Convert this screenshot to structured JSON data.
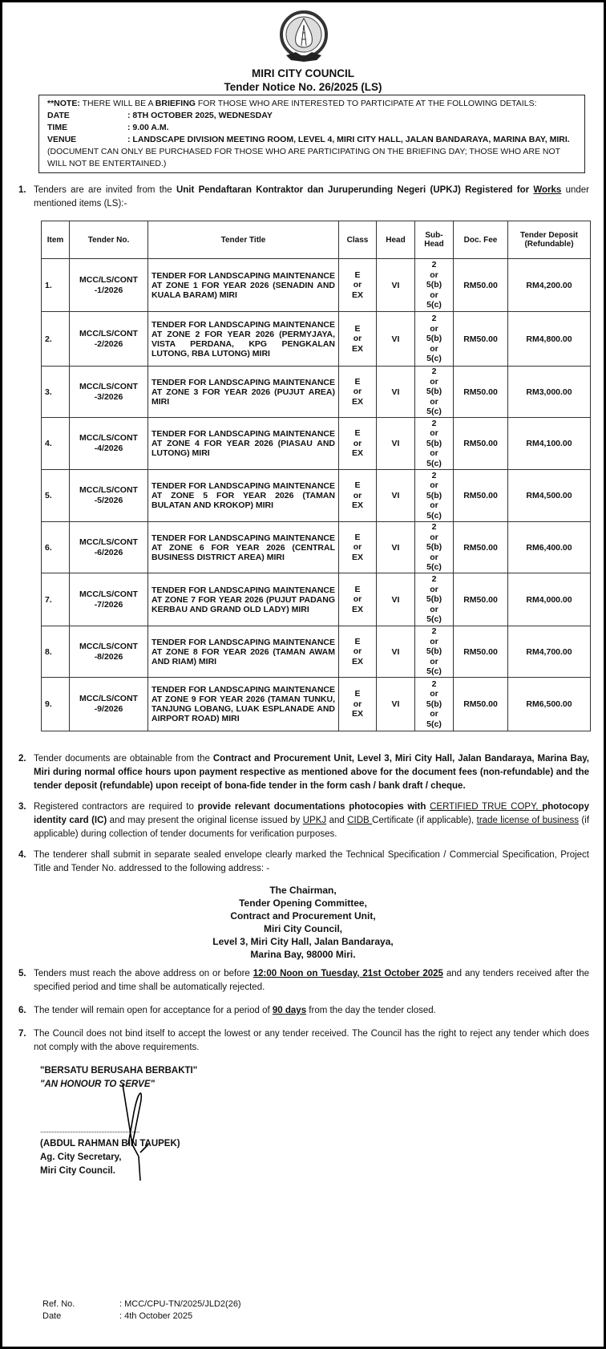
{
  "header": {
    "logo_text": "MAJLIS BANDARAYA MIRI",
    "org": "MIRI CITY COUNCIL",
    "notice": "Tender Notice No. 26/2025 (LS)"
  },
  "note": {
    "prefix": "**NOTE:",
    "line1a": " THERE WILL BE A ",
    "briefing": "BRIEFING",
    "line1b": " FOR THOSE WHO ARE INTERESTED TO PARTICIPATE AT THE FOLLOWING DETAILS:",
    "date_label": "DATE",
    "date_value": ": 8TH OCTOBER 2025, WEDNESDAY",
    "time_label": "TIME",
    "time_value": ": 9.00 A.M.",
    "venue_label": "VENUE",
    "venue_value": ": LANDSCAPE DIVISION MEETING ROOM, LEVEL 4, MIRI CITY HALL, JALAN BANDARAYA, MARINA BAY, MIRI.",
    "disclaimer": "(DOCUMENT CAN ONLY BE PURCHASED FOR THOSE WHO ARE PARTICIPATING ON THE BRIEFING DAY; THOSE WHO ARE NOT WILL NOT BE ENTERTAINED.)"
  },
  "paragraphs": [
    {
      "num": "1.",
      "segs": [
        {
          "t": "Tenders are are invited from the "
        },
        {
          "t": "Unit Pendaftaran Kontraktor dan Juruperunding Negeri (UPKJ) Registered for ",
          "b": 1
        },
        {
          "t": "Works",
          "b": 1,
          "u": 1
        },
        {
          "t": " under mentioned items (LS):-"
        }
      ]
    },
    {
      "num": "2.",
      "segs": [
        {
          "t": "Tender documents are obtainable from the "
        },
        {
          "t": "Contract and Procurement Unit, Level 3, Miri City Hall, Jalan Bandaraya, Marina Bay, Miri during normal office hours upon payment respective as mentioned above for the document fees (non-refundable) and the tender deposit (refundable) upon receipt of bona-fide tender in the form cash / bank draft / cheque.",
          "b": 1
        }
      ]
    },
    {
      "num": "3.",
      "segs": [
        {
          "t": "Registered contractors are required to "
        },
        {
          "t": "provide relevant documentations photocopies with ",
          "b": 1
        },
        {
          "t": "CERTIFIED TRUE COPY, ",
          "u": 1
        },
        {
          "t": "photocopy identity card (IC)",
          "b": 1
        },
        {
          "t": " and may present the original license issued by "
        },
        {
          "t": "UPKJ",
          "u": 1
        },
        {
          "t": " and "
        },
        {
          "t": "CIDB ",
          "u": 1
        },
        {
          "t": "Certificate (if applicable), "
        },
        {
          "t": "trade license of business",
          "u": 1
        },
        {
          "t": " (if applicable) during collection of tender documents for verification purposes."
        }
      ]
    },
    {
      "num": "4.",
      "segs": [
        {
          "t": "The tenderer shall submit in separate sealed envelope clearly marked the Technical Specification / Commercial Specification, Project Title and Tender No. addressed to the following address: -"
        }
      ]
    },
    {
      "num": "5.",
      "segs": [
        {
          "t": "Tenders must reach the above address on or before "
        },
        {
          "t": "12:00 Noon on Tuesday, 21st October 2025",
          "b": 1,
          "u": 1
        },
        {
          "t": " and any tenders received after the specified period and time shall be automatically rejected."
        }
      ]
    },
    {
      "num": "6.",
      "segs": [
        {
          "t": "The tender will remain open for acceptance for a period of "
        },
        {
          "t": "90 days",
          "b": 1,
          "u": 1
        },
        {
          "t": " from the day the tender closed."
        }
      ]
    },
    {
      "num": "7.",
      "segs": [
        {
          "t": "The Council does not bind itself to accept the lowest or any tender received. The Council has the right to reject any tender which does not comply with the above requirements."
        }
      ]
    }
  ],
  "table": {
    "headers": [
      "Item",
      "Tender No.",
      "Tender Title",
      "Class",
      "Head",
      "Sub-Head",
      "Doc. Fee",
      "Tender Deposit (Refundable)"
    ],
    "rows": [
      [
        "1.",
        "MCC/LS/CONT -1/2026",
        "TENDER FOR LANDSCAPING MAINTENANCE AT ZONE 1 FOR YEAR 2026 (SENADIN AND KUALA BARAM) MIRI",
        "E or EX",
        "VI",
        "2 or 5(b) or 5(c)",
        "RM50.00",
        "RM4,200.00"
      ],
      [
        "2.",
        "MCC/LS/CONT -2/2026",
        "TENDER FOR LANDSCAPING MAINTENANCE AT ZONE 2 FOR YEAR 2026 (PERMYJAYA, VISTA PERDANA, KPG PENGKALAN LUTONG, RBA LUTONG) MIRI",
        "E or EX",
        "VI",
        "2 or 5(b) or 5(c)",
        "RM50.00",
        "RM4,800.00"
      ],
      [
        "3.",
        "MCC/LS/CONT -3/2026",
        "TENDER FOR LANDSCAPING MAINTENANCE AT ZONE 3 FOR YEAR 2026 (PUJUT AREA) MIRI",
        "E or EX",
        "VI",
        "2 or 5(b) or 5(c)",
        "RM50.00",
        "RM3,000.00"
      ],
      [
        "4.",
        "MCC/LS/CONT -4/2026",
        "TENDER FOR LANDSCAPING MAINTENANCE AT ZONE 4 FOR YEAR 2026 (PIASAU AND LUTONG) MIRI",
        "E or EX",
        "VI",
        "2 or 5(b) or 5(c)",
        "RM50.00",
        "RM4,100.00"
      ],
      [
        "5.",
        "MCC/LS/CONT -5/2026",
        "TENDER FOR LANDSCAPING MAINTENANCE AT ZONE 5 FOR YEAR 2026 (TAMAN BULATAN AND KROKOP) MIRI",
        "E or EX",
        "VI",
        "2 or 5(b) or 5(c)",
        "RM50.00",
        "RM4,500.00"
      ],
      [
        "6.",
        "MCC/LS/CONT -6/2026",
        "TENDER FOR LANDSCAPING MAINTENANCE AT ZONE 6 FOR YEAR 2026 (CENTRAL BUSINESS DISTRICT AREA) MIRI",
        "E or EX",
        "VI",
        "2 or 5(b) or 5(c)",
        "RM50.00",
        "RM6,400.00"
      ],
      [
        "7.",
        "MCC/LS/CONT -7/2026",
        "TENDER FOR LANDSCAPING MAINTENANCE AT ZONE 7 FOR YEAR 2026 (PUJUT PADANG KERBAU AND GRAND OLD LADY) MIRI",
        "E or EX",
        "VI",
        "2 or 5(b) or 5(c)",
        "RM50.00",
        "RM4,000.00"
      ],
      [
        "8.",
        "MCC/LS/CONT -8/2026",
        "TENDER FOR LANDSCAPING MAINTENANCE AT ZONE 8 FOR YEAR 2026 (TAMAN AWAM AND RIAM) MIRI",
        "E or EX",
        "VI",
        "2 or 5(b) or 5(c)",
        "RM50.00",
        "RM4,700.00"
      ],
      [
        "9.",
        "MCC/LS/CONT -9/2026",
        "TENDER FOR LANDSCAPING MAINTENANCE AT ZONE 9 FOR YEAR 2026 (TAMAN TUNKU, TANJUNG LOBANG, LUAK ESPLANADE AND AIRPORT ROAD) MIRI",
        "E or EX",
        "VI",
        "2 or 5(b) or 5(c)",
        "RM50.00",
        "RM6,500.00"
      ]
    ]
  },
  "address": [
    "The Chairman,",
    "Tender Opening Committee,",
    "Contract and Procurement Unit,",
    "Miri City Council,",
    "Level 3, Miri City Hall, Jalan Bandaraya,",
    "Marina Bay, 98000 Miri."
  ],
  "signature": {
    "motto_malay": "\"BERSATU BERUSAHA BERBAKTI\"",
    "motto_english": "\"AN HONOUR TO SERVE\"",
    "dots": "..............................................................",
    "name": "(ABDUL RAHMAN BIN TAUPEK)",
    "position": "Ag. City Secretary,",
    "org": "Miri City Council."
  },
  "reference": {
    "ref_label": "Ref. No.",
    "ref_value": ": MCC/CPU-TN/2025/JLD2(26)",
    "date_label": "Date",
    "date_value": ": 4th October 2025"
  }
}
